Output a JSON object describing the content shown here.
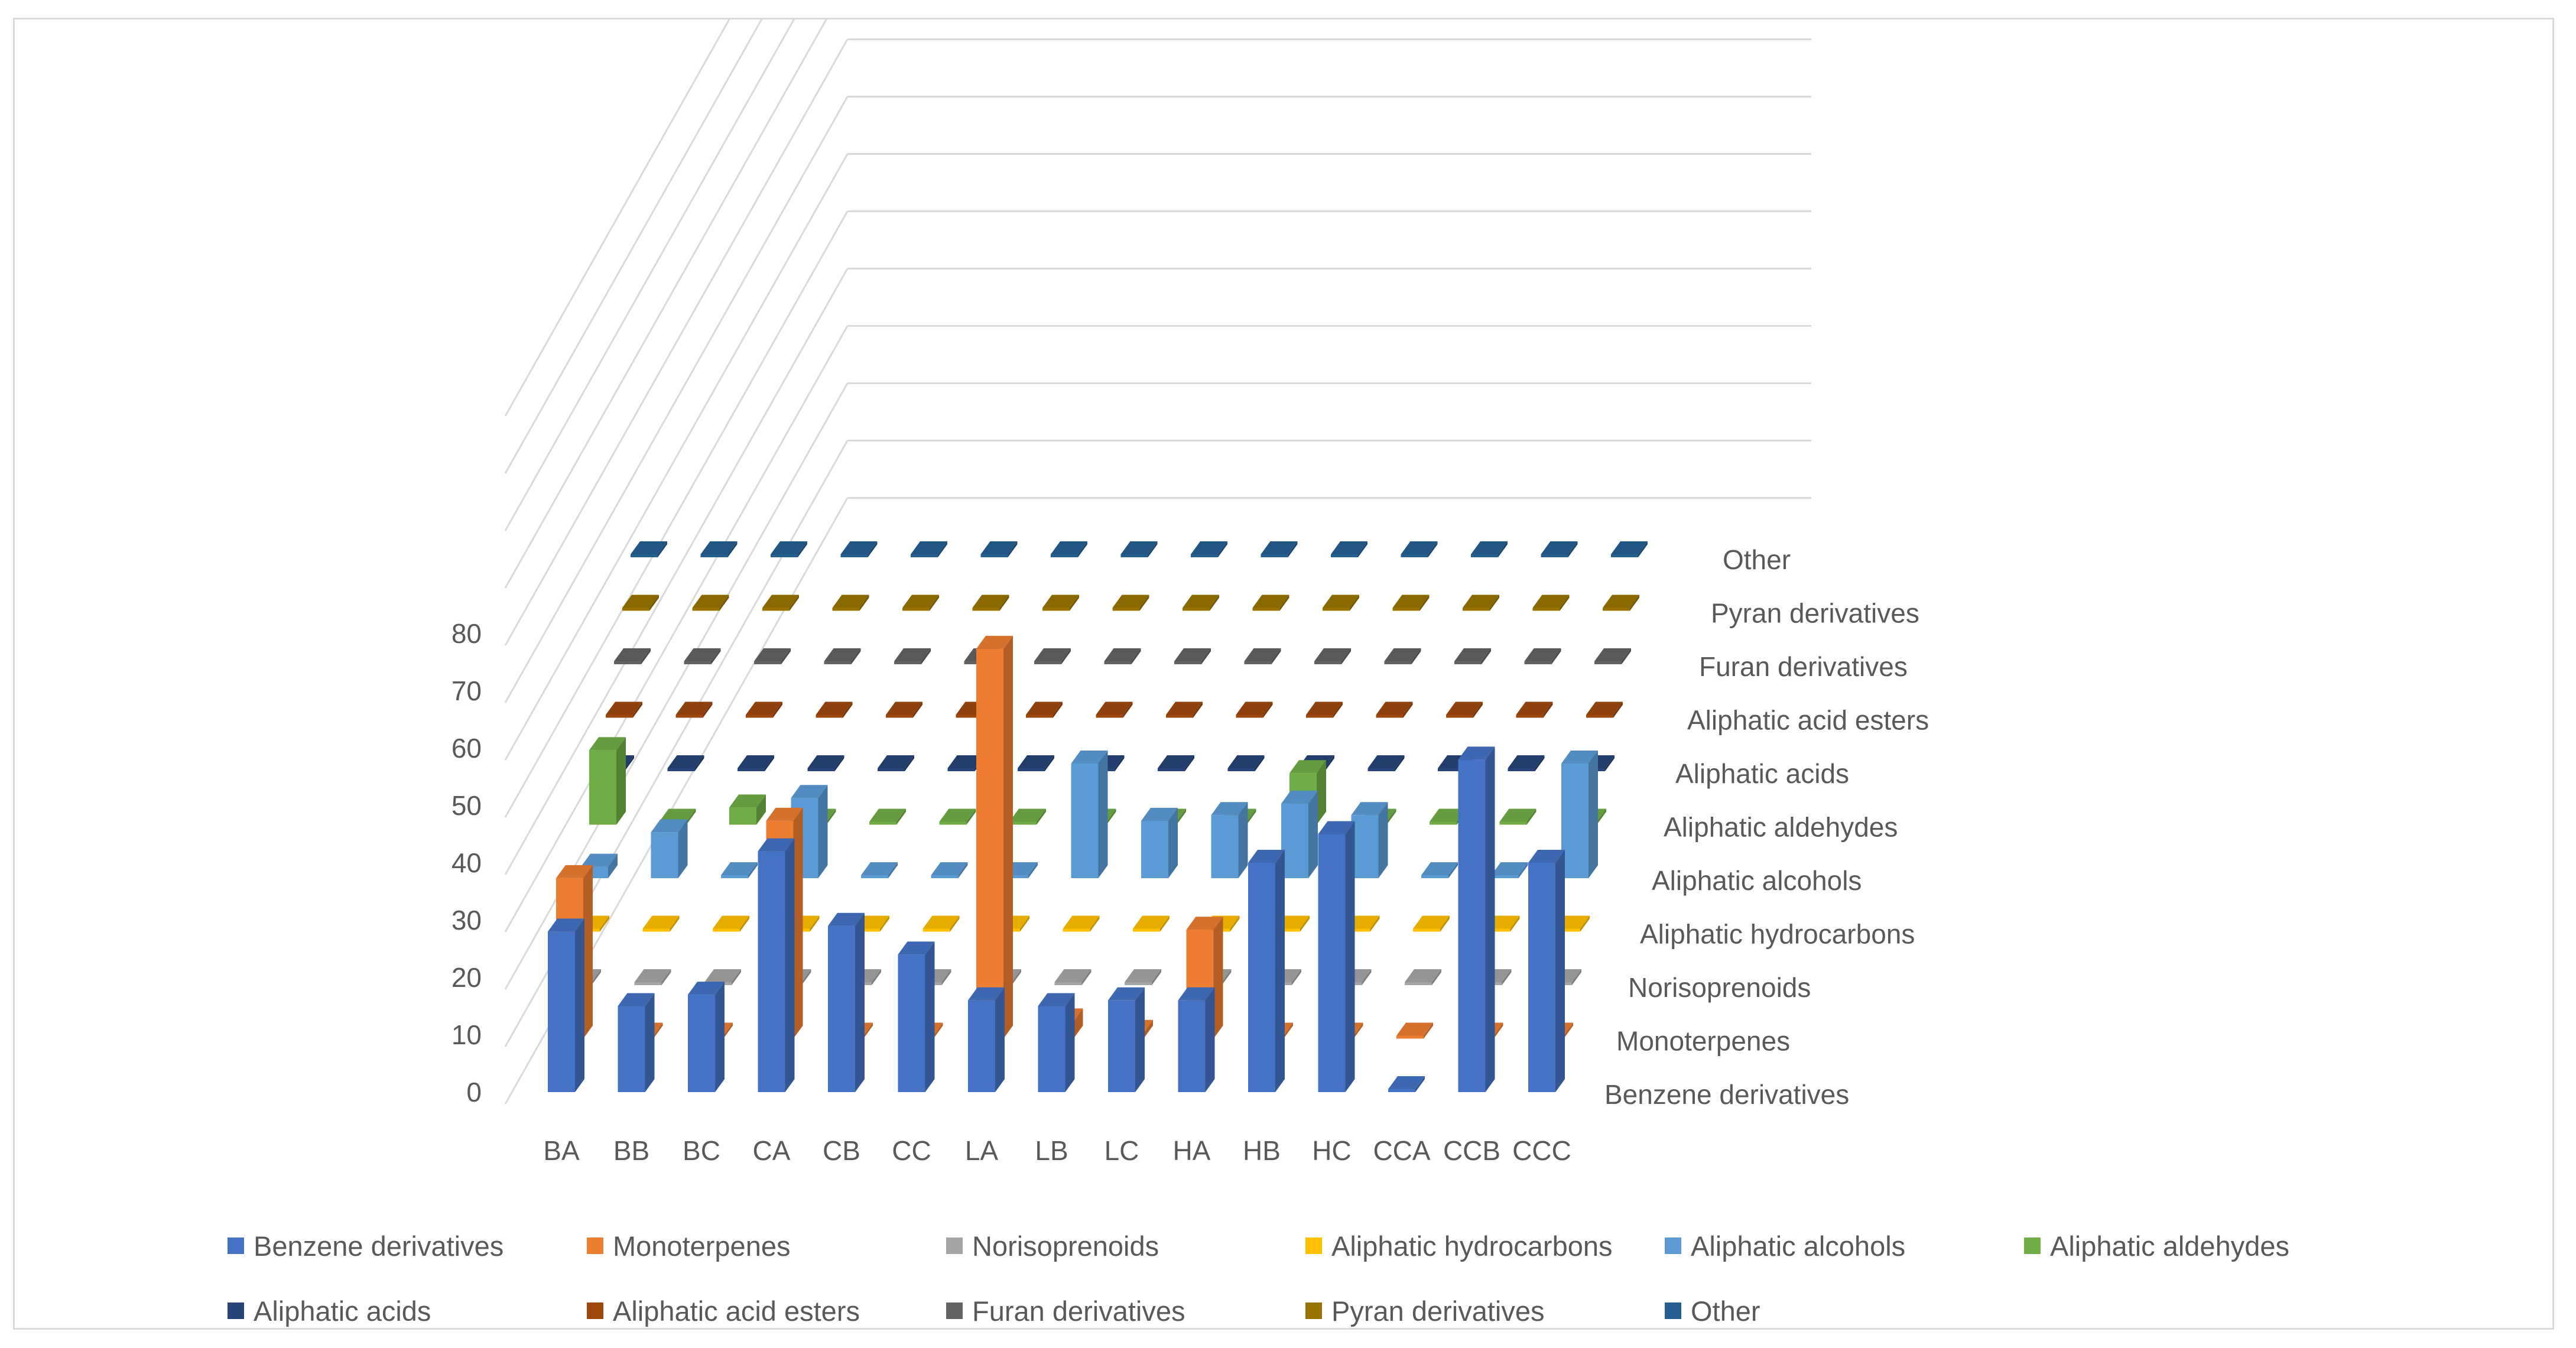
{
  "chart_data": {
    "type": "bar",
    "title": "",
    "xlabel": "",
    "ylabel": "",
    "ylim": [
      0,
      80
    ],
    "yticks": [
      "0",
      "10",
      "20",
      "30",
      "40",
      "50",
      "60",
      "70",
      "80"
    ],
    "categories": [
      "BA",
      "BB",
      "BC",
      "CA",
      "CB",
      "CC",
      "LA",
      "LB",
      "LC",
      "HA",
      "HB",
      "HC",
      "CCA",
      "CCB",
      "CCC"
    ],
    "legend_position": "bottom",
    "series": [
      {
        "name": "Benzene derivatives",
        "color": "#4472C4",
        "values": [
          28,
          15,
          17,
          42,
          29,
          24,
          16,
          15,
          16,
          16,
          40,
          45,
          0,
          58,
          40
        ]
      },
      {
        "name": "Monoterpenes",
        "color": "#ED7D31",
        "values": [
          28,
          0,
          0,
          38,
          0,
          0,
          68,
          3,
          1,
          19,
          0,
          0,
          0,
          0,
          0
        ]
      },
      {
        "name": "Norisoprenoids",
        "color": "#A5A5A5",
        "values": [
          0,
          0,
          0,
          0,
          0,
          0,
          0,
          0,
          0,
          0,
          0,
          0,
          0,
          0,
          0
        ]
      },
      {
        "name": "Aliphatic hydrocarbons",
        "color": "#FFC000",
        "values": [
          0,
          0,
          0,
          0,
          0,
          0,
          0,
          0,
          0,
          0,
          0,
          0,
          0,
          0,
          0
        ]
      },
      {
        "name": "Aliphatic alcohols",
        "color": "#5B9BD5",
        "values": [
          2,
          8,
          0,
          14,
          0,
          0,
          0,
          20,
          10,
          11,
          13,
          11,
          0,
          0,
          20
        ]
      },
      {
        "name": "Aliphatic aldehydes",
        "color": "#70AD47",
        "values": [
          13,
          0,
          3,
          0,
          0,
          0,
          0,
          0,
          0,
          0,
          9,
          0,
          0,
          0,
          0
        ]
      },
      {
        "name": "Aliphatic acids",
        "color": "#264478",
        "values": [
          0,
          0,
          0,
          0,
          0,
          0,
          0,
          0,
          0,
          0,
          0,
          0,
          0,
          0,
          0
        ]
      },
      {
        "name": "Aliphatic acid esters",
        "color": "#9E480E",
        "values": [
          0,
          0,
          0,
          0,
          0,
          0,
          0,
          0,
          0,
          0,
          0,
          0,
          0,
          0,
          0
        ]
      },
      {
        "name": "Furan derivatives",
        "color": "#636363",
        "values": [
          0,
          0,
          0,
          0,
          0,
          0,
          0,
          0,
          0,
          0,
          0,
          0,
          0,
          0,
          0
        ]
      },
      {
        "name": "Pyran derivatives",
        "color": "#997300",
        "values": [
          0,
          0,
          0,
          0,
          0,
          0,
          0,
          0,
          0,
          0,
          0,
          0,
          0,
          0,
          0
        ]
      },
      {
        "name": "Other",
        "color": "#255E91",
        "values": [
          0,
          0,
          0,
          0,
          0,
          0,
          0,
          0,
          0,
          0,
          0,
          0,
          0,
          0,
          0
        ]
      }
    ]
  }
}
